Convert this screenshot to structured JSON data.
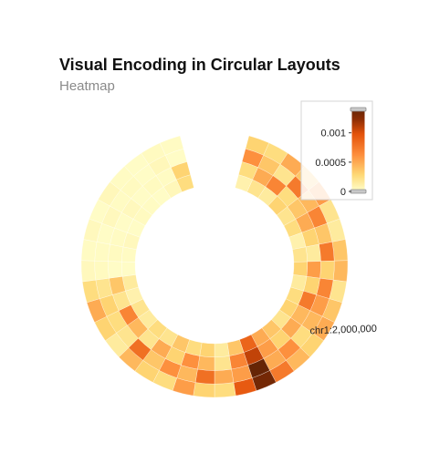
{
  "chart_data": {
    "type": "heatmap",
    "layout": "circular",
    "title": "Visual Encoding in Circular Layouts",
    "subtitle": "Heatmap",
    "axis_label": "chr1:2,000,000",
    "color_scale": {
      "domain": [
        0,
        0.0014
      ],
      "colors": [
        "#ffffcc",
        "#fed976",
        "#fd8d3c",
        "#e3520a",
        "#8c2d04",
        "#662506"
      ],
      "legend_ticks": [
        {
          "value": 0,
          "label": "0"
        },
        {
          "value": 0.0005,
          "label": "0.0005"
        },
        {
          "value": 0.001,
          "label": "0.001"
        }
      ],
      "legend_placement": "top-right"
    },
    "rings": 4,
    "segments": 36,
    "values": [
      [
        0.0003,
        0.00025,
        0.00045,
        0.00035,
        0.0005,
        0.0002,
        0.00015,
        0.00035,
        0.0004,
        0.0002,
        0.00035,
        0.00045,
        0.0003,
        0.0004,
        0.00065,
        0.0013,
        0.0008,
        0.00025,
        0.0003,
        0.0005,
        0.00025,
        0.0003,
        0.0004,
        0.00015,
        0.0003,
        0.00045,
        0.00025,
        5e-05,
        3e-05,
        5e-05,
        2e-05,
        6e-05,
        3e-05,
        2e-05,
        4e-05,
        3e-05
      ],
      [
        0.00055,
        0.00035,
        0.0002,
        0.00065,
        0.0004,
        0.0006,
        0.00035,
        0.00065,
        0.0003,
        0.0006,
        0.0005,
        0.0004,
        0.00025,
        0.00055,
        0.00045,
        0.0014,
        0.0005,
        0.00045,
        0.0007,
        0.0004,
        0.00055,
        0.00035,
        0.0007,
        0.0002,
        0.00025,
        0.0003,
        0.0002,
        4e-05,
        3e-05,
        2e-05,
        5e-05,
        3e-05,
        4e-05,
        2e-05,
        6e-05,
        2e-05
      ],
      [
        0.00025,
        0.00045,
        0.0006,
        0.00025,
        0.00035,
        0.00045,
        0.0003,
        0.00015,
        0.0005,
        0.0003,
        0.00065,
        0.0004,
        0.00045,
        0.0003,
        0.0005,
        0.00095,
        0.0006,
        0.0002,
        0.0004,
        0.00055,
        0.0003,
        0.00045,
        0.0002,
        0.0004,
        0.0006,
        0.0002,
        0.00035,
        2e-05,
        4e-05,
        3e-05,
        2e-05,
        5e-05,
        2e-05,
        4e-05,
        3e-05,
        0.0003
      ],
      [
        0.0001,
        0.0002,
        0.00015,
        0.0003,
        0.0002,
        0.00025,
        0.0001,
        0.0002,
        0.0003,
        0.00015,
        0.00025,
        0.0003,
        0.0002,
        0.00035,
        0.00045,
        0.00075,
        0.00035,
        0.00015,
        0.0003,
        0.00025,
        0.00035,
        0.0002,
        0.00025,
        0.00015,
        0.0002,
        0.0001,
        0.00015,
        2e-05,
        3e-05,
        5e-05,
        2e-05,
        4e-05,
        3e-05,
        2e-05,
        6e-05,
        0.00025
      ]
    ]
  }
}
